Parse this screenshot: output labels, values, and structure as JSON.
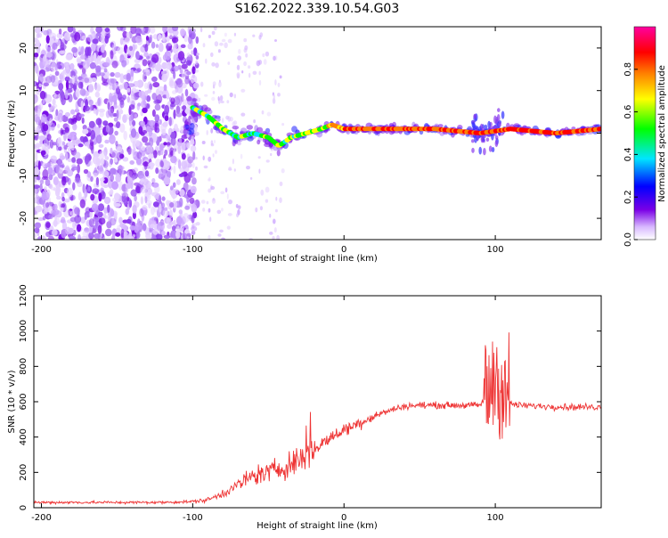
{
  "title": "S162.2022.339.10.54.G03",
  "chart_data": [
    {
      "type": "heatmap",
      "xlabel": "Height of straight line (km)",
      "ylabel": "Frequency (Hz)",
      "xlim": [
        -205,
        170
      ],
      "ylim": [
        -25,
        25
      ],
      "xticks": [
        -200,
        -100,
        0,
        100
      ],
      "yticks": [
        -20,
        -10,
        0,
        10,
        20
      ],
      "colorbar": {
        "label": "Normalized spectral amplitude",
        "range": [
          0,
          1
        ],
        "ticks": [
          "0.0",
          "0.2",
          "0.4",
          "0.6",
          "0.8"
        ],
        "stops": [
          "#ffffff",
          "#7a00e6",
          "#0000ff",
          "#00e5ff",
          "#00ff00",
          "#ffff00",
          "#ff8000",
          "#ff0000",
          "#ff00a0"
        ]
      },
      "ridge": [
        {
          "x": -100,
          "y": 6
        },
        {
          "x": -90,
          "y": 4
        },
        {
          "x": -80,
          "y": 1
        },
        {
          "x": -70,
          "y": -1
        },
        {
          "x": -60,
          "y": 0
        },
        {
          "x": -50,
          "y": -1
        },
        {
          "x": -43,
          "y": -3
        },
        {
          "x": -35,
          "y": -1
        },
        {
          "x": -25,
          "y": 0
        },
        {
          "x": -15,
          "y": 1
        },
        {
          "x": -8,
          "y": 2
        },
        {
          "x": 0,
          "y": 1
        },
        {
          "x": 20,
          "y": 1
        },
        {
          "x": 60,
          "y": 1
        },
        {
          "x": 90,
          "y": 0
        },
        {
          "x": 110,
          "y": 1
        },
        {
          "x": 140,
          "y": 0
        },
        {
          "x": 170,
          "y": 1
        }
      ]
    },
    {
      "type": "line",
      "xlabel": "Height of straight line (km)",
      "ylabel": "SNR (10 * v/v)",
      "xlim": [
        -205,
        170
      ],
      "ylim": [
        0,
        1200
      ],
      "xticks": [
        -200,
        -100,
        0,
        100
      ],
      "yticks": [
        0,
        200,
        400,
        600,
        800,
        1000,
        1200
      ],
      "color": "#ee3333",
      "series": [
        {
          "x": [
            -205,
            -180,
            -160,
            -140,
            -120,
            -100,
            -90,
            -80,
            -70,
            -60,
            -50,
            -40,
            -30,
            -20,
            -10,
            0,
            10,
            20,
            30,
            40,
            50,
            60,
            80,
            90,
            95,
            100,
            105,
            110,
            115,
            130,
            150,
            170
          ],
          "y": [
            30,
            30,
            30,
            30,
            30,
            35,
            45,
            80,
            130,
            180,
            200,
            230,
            270,
            330,
            390,
            440,
            480,
            520,
            550,
            575,
            580,
            580,
            580,
            580,
            650,
            750,
            700,
            590,
            580,
            575,
            570,
            570
          ]
        }
      ]
    }
  ]
}
